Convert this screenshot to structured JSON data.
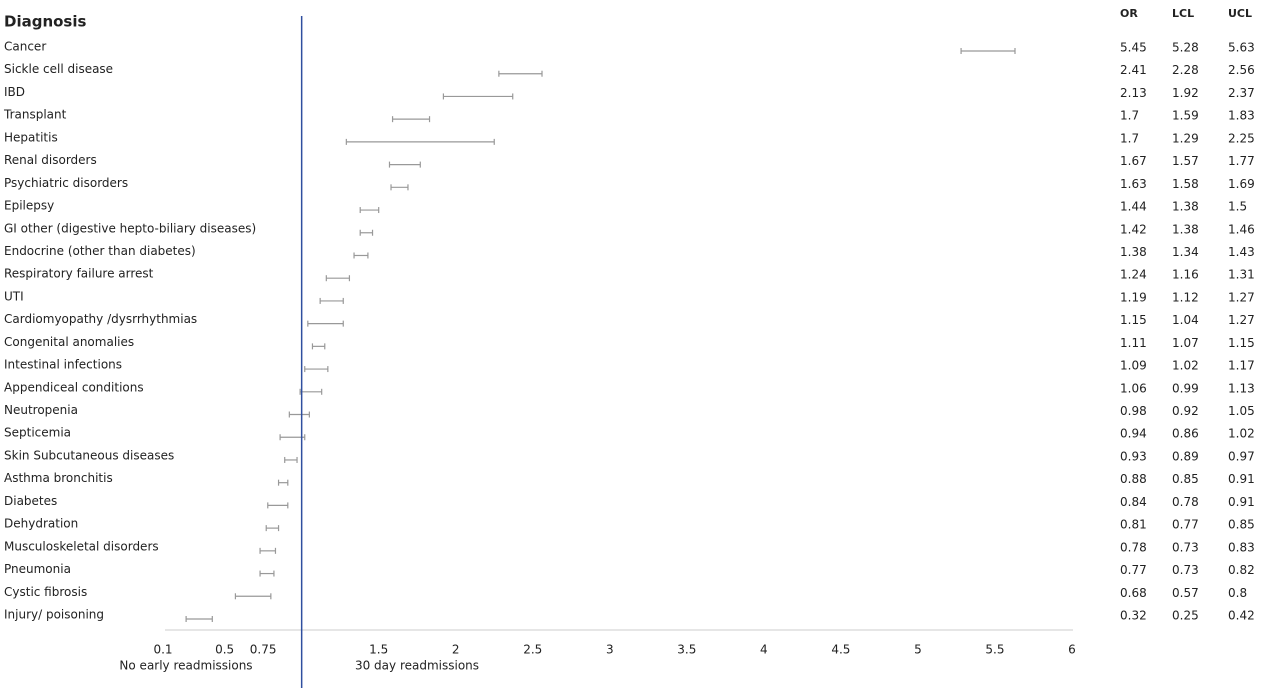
{
  "chart_data": {
    "type": "forest",
    "title": "Diagnosis",
    "categories": [
      "Cancer",
      "Sickle cell disease",
      "IBD",
      "Transplant",
      "Hepatitis",
      "Renal disorders",
      "Psychiatric disorders",
      "Epilepsy",
      "GI other (digestive hepto-biliary diseases)",
      "Endocrine (other than diabetes)",
      "Respiratory failure arrest",
      "UTI",
      "Cardiomyopathy /dysrrhythmias",
      "Congenital anomalies",
      "Intestinal infections",
      "Appendiceal conditions",
      "Neutropenia",
      "Septicemia",
      "Skin Subcutaneous diseases",
      "Asthma bronchitis",
      "Diabetes",
      "Dehydration",
      "Musculoskeletal disorders",
      "Pneumonia",
      "Cystic fibrosis",
      "Injury/ poisoning"
    ],
    "columns": [
      "OR",
      "LCL",
      "UCL"
    ],
    "or": [
      5.45,
      2.41,
      2.13,
      1.7,
      1.7,
      1.67,
      1.63,
      1.44,
      1.42,
      1.38,
      1.24,
      1.19,
      1.15,
      1.11,
      1.09,
      1.06,
      0.98,
      0.94,
      0.93,
      0.88,
      0.84,
      0.81,
      0.78,
      0.77,
      0.68,
      0.32
    ],
    "lcl": [
      5.28,
      2.28,
      1.92,
      1.59,
      1.29,
      1.57,
      1.58,
      1.38,
      1.38,
      1.34,
      1.16,
      1.12,
      1.04,
      1.07,
      1.02,
      0.99,
      0.92,
      0.86,
      0.89,
      0.85,
      0.78,
      0.77,
      0.73,
      0.73,
      0.57,
      0.25
    ],
    "ucl": [
      5.63,
      2.56,
      2.37,
      1.83,
      2.25,
      1.77,
      1.69,
      1.5,
      1.46,
      1.43,
      1.31,
      1.27,
      1.27,
      1.15,
      1.17,
      1.13,
      1.05,
      1.02,
      0.97,
      0.91,
      0.91,
      0.85,
      0.83,
      0.82,
      0.8,
      0.42
    ],
    "xlim": [
      0.1,
      6
    ],
    "xticks": [
      0.1,
      0.5,
      0.75,
      1.5,
      2,
      2.5,
      3,
      3.5,
      4,
      4.5,
      5,
      5.5,
      6
    ],
    "ref_line": 1,
    "ref_color": "#2f4f9f",
    "color": "#999999",
    "left_label": "No early readmissions",
    "right_label": "30 day readmissions"
  }
}
